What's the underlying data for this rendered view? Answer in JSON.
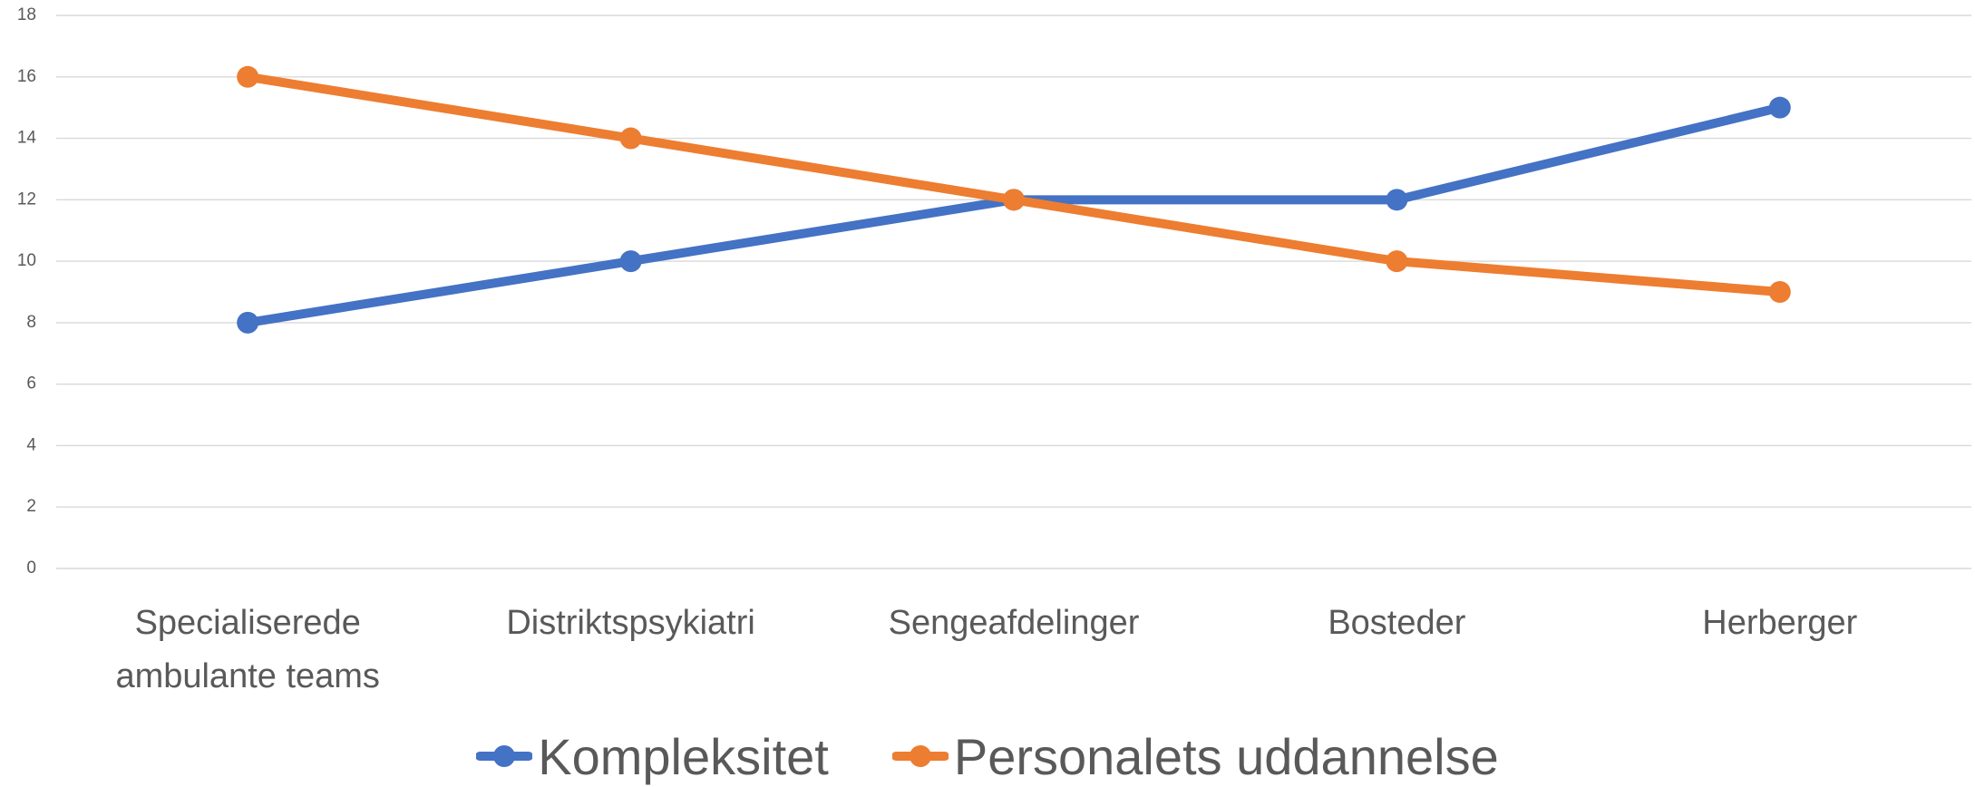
{
  "chart_data": {
    "type": "line",
    "categories": [
      "Specialiserede ambulante teams",
      "Distriktspsykiatri",
      "Sengeafdelinger",
      "Bosteder",
      "Herberger"
    ],
    "series": [
      {
        "name": "Kompleksitet",
        "color": "#4472c4",
        "values": [
          8,
          10,
          12,
          12,
          15
        ]
      },
      {
        "name": "Personalets uddannelse",
        "color": "#ed7d31",
        "values": [
          16,
          14,
          12,
          10,
          9
        ]
      }
    ],
    "ylim": [
      0,
      18
    ],
    "yticks": [
      0,
      2,
      4,
      6,
      8,
      10,
      12,
      14,
      16,
      18
    ],
    "grid": true,
    "legend": "bottom"
  }
}
